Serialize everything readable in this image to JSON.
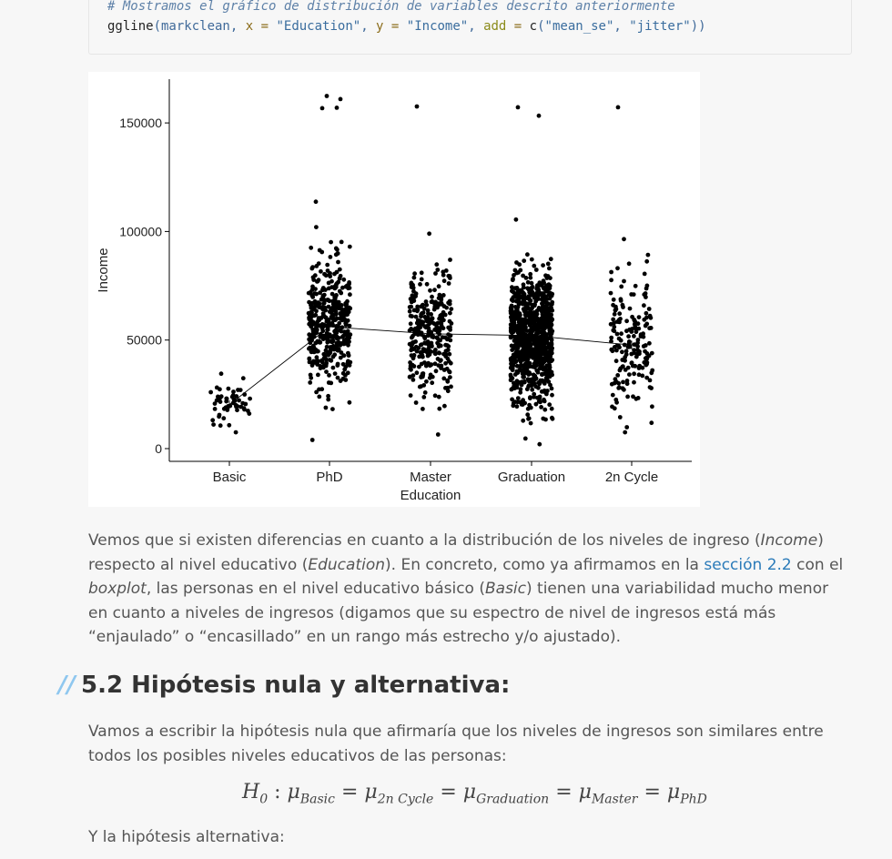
{
  "code": {
    "comment": "# Mostramos el gráfico de distribución de variables descrito anteriormente",
    "call": {
      "fn": "ggline",
      "p1": "(markclean, ",
      "x_kw": "x",
      "eq1": " = ",
      "x_val": "\"Education\"",
      "sep1": ", ",
      "y_kw": "y",
      "eq2": " = ",
      "y_val": "\"Income\"",
      "sep2": ", ",
      "add_kw": "add",
      "eq3": " = ",
      "c_fn": "c",
      "p2": "(",
      "v1": "\"mean_se\"",
      "sep3": ", ",
      "v2": "\"jitter\"",
      "p3": "))"
    }
  },
  "chart_data": {
    "type": "scatter",
    "xlabel": "Education",
    "ylabel": "Income",
    "categories": [
      "Basic",
      "PhD",
      "Master",
      "Graduation",
      "2n Cycle"
    ],
    "ylim": [
      0,
      170000
    ],
    "yticks": [
      0,
      50000,
      100000,
      150000
    ],
    "ytick_labels": [
      "0",
      "50000",
      "100000",
      "150000"
    ],
    "mean_line": [
      20300,
      56100,
      52900,
      52100,
      47700
    ],
    "jitter_counts": [
      54,
      420,
      320,
      900,
      180
    ],
    "ranges": [
      {
        "min": 7500,
        "max": 34500,
        "mu": 20300,
        "sd": 6500
      },
      {
        "min": 4000,
        "max": 102000,
        "mu": 56100,
        "sd": 20000
      },
      {
        "min": 6500,
        "max": 99000,
        "mu": 52900,
        "sd": 20000
      },
      {
        "min": 2000,
        "max": 105500,
        "mu": 52100,
        "sd": 21000
      },
      {
        "min": 7500,
        "max": 96500,
        "mu": 47700,
        "sd": 22000
      }
    ],
    "outliers": [
      {
        "cat": "PhD",
        "values": [
          113700,
          157000,
          156800,
          161000,
          162400
        ]
      },
      {
        "cat": "Master",
        "values": [
          157600
        ]
      },
      {
        "cat": "Graduation",
        "values": [
          157200,
          153300
        ]
      },
      {
        "cat": "2n Cycle",
        "values": [
          157200
        ]
      }
    ]
  },
  "paragraph1": {
    "t1": "Vemos que si existen diferencias en cuanto a la distribución de los niveles de ingreso (",
    "i1": "Income",
    "t2": ") respecto al nivel educativo (",
    "i2": "Education",
    "t3": "). En concreto, como ya afirmamos en la ",
    "link": "sección 2.2",
    "t4": " con el ",
    "i3": "boxplot",
    "t5": ", las personas en el nivel educativo básico (",
    "i4": "Basic",
    "t6": ") tienen una variabilidad mucho menor en cuanto a niveles de ingresos (digamos que su espectro de nivel de ingresos está más “enjaulado” o “encasillado” en un rango más estrecho y/o ajustado)."
  },
  "heading": {
    "slashes": "//",
    "text": "5.2 Hipótesis nula y alternativa:"
  },
  "paragraph2": "Vamos a escribir la hipótesis nula que afirmaría que los niveles de ingresos son similares entre todos los posibles niveles educativos de las personas:",
  "formula": {
    "h": "H",
    "h_sub": "0",
    "colon": ":",
    "mu": "μ",
    "subs": [
      "Basic",
      "2n Cycle",
      "Graduation",
      "Master",
      "PhD"
    ],
    "eq": "="
  },
  "paragraph3": "Y la hipótesis alternativa:"
}
